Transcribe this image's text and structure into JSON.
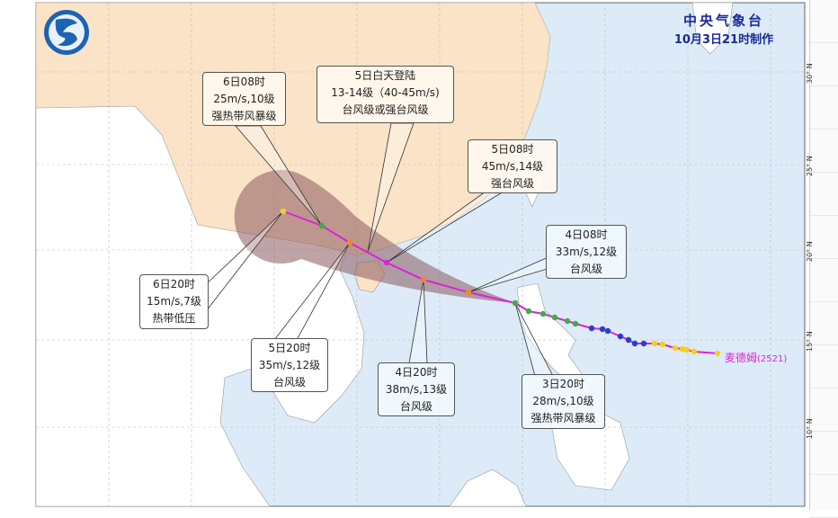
{
  "header": {
    "agency": "中央气象台",
    "issued": "10月3日21时制作"
  },
  "typhoon": {
    "name": "麦德姆",
    "code": "(2521)",
    "track_color": "#e020d8"
  },
  "latitude_labels": [
    "30° N",
    "25° N",
    "20° N",
    "15° N",
    "10° N"
  ],
  "callouts": [
    {
      "time": "6日08时",
      "wind": "25m/s,10级",
      "level": "强热带风暴级"
    },
    {
      "time": "5日白天登陆",
      "wind": "13-14级（40-45m/s)",
      "level": "台风级或强台风级"
    },
    {
      "time": "5日08时",
      "wind": "45m/s,14级",
      "level": "强台风级"
    },
    {
      "time": "4日08时",
      "wind": "33m/s,12级",
      "level": "台风级"
    },
    {
      "time": "3日20时",
      "wind": "28m/s,10级",
      "level": "强热带风暴级"
    },
    {
      "time": "4日20时",
      "wind": "38m/s,13级",
      "level": "台风级"
    },
    {
      "time": "5日20时",
      "wind": "35m/s,12级",
      "level": "台风级"
    },
    {
      "time": "6日20时",
      "wind": "15m/s,7级",
      "level": "热带低压"
    }
  ],
  "colors": {
    "ocean": "#dcebf7",
    "china_land": "#fae3c6",
    "other_land": "#ffffff",
    "cone": "#8a5a5e",
    "tropical_storm": "#3cb043",
    "severe_tropical_storm": "#3cb043",
    "typhoon": "#f08a24",
    "severe_typhoon": "#e020d8",
    "tropical_depression": "#f3d21b",
    "past_blue": "#2a3fc8"
  },
  "icons": {
    "logo": "cma-logo-icon"
  }
}
